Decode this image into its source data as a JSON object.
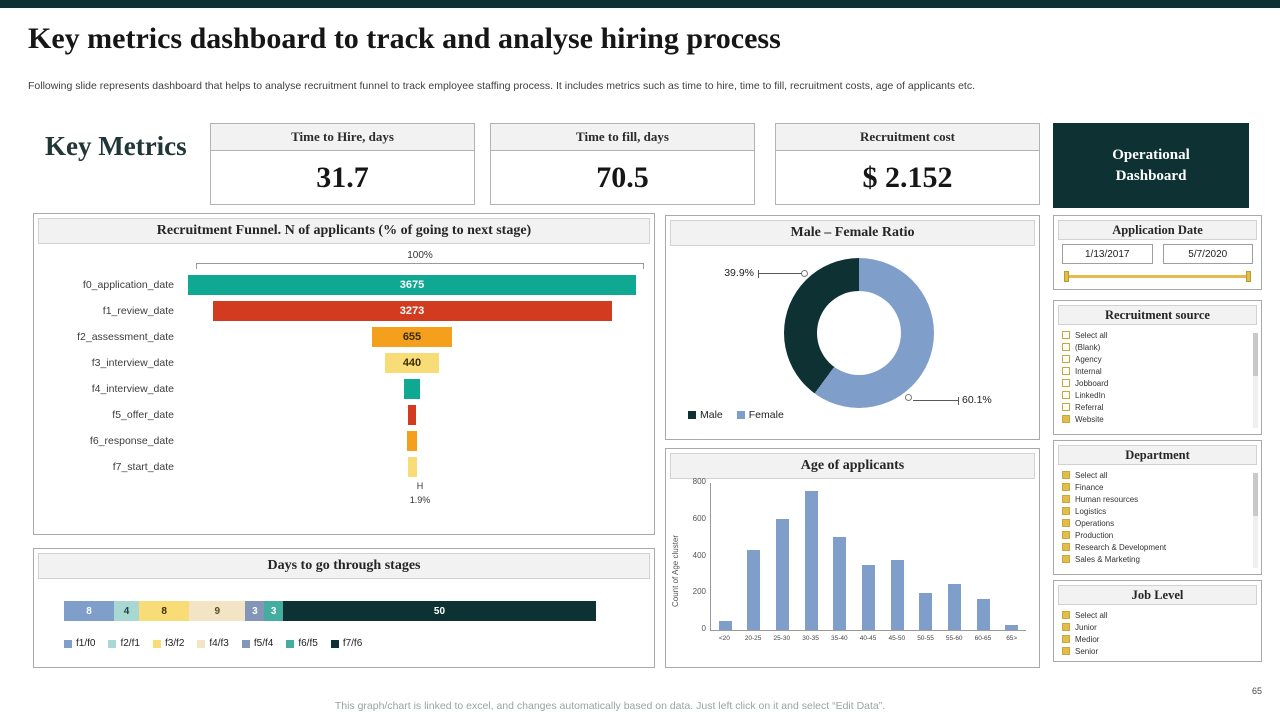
{
  "colors": {
    "dark-teal": "#0e3234",
    "gold": "#e3bc4b",
    "blue": "#7f9ec9",
    "panel-border": "#a9a9a9",
    "header-bg": "#f2f2f2"
  },
  "slide": {
    "title": "Key metrics dashboard to track and analyse hiring process",
    "subtitle": "Following slide represents dashboard that helps to analyse recruitment funnel to track employee staffing process. It includes metrics such as time to hire, time to fill, recruitment costs, age of applicants etc.",
    "footer_note": "This graph/chart is linked to excel, and changes automatically based on data. Just left click on it and select “Edit Data”.",
    "page_number": "65"
  },
  "key_metrics": {
    "heading": "Key Metrics",
    "cards": [
      {
        "label": "Time to Hire, days",
        "value": "31.7"
      },
      {
        "label": "Time to fill, days",
        "value": "70.5"
      },
      {
        "label": "Recruitment cost",
        "value": "$ 2.152"
      }
    ],
    "dashboard_button": "Operational Dashboard"
  },
  "chart_data": [
    {
      "type": "bar",
      "subtype": "centered-funnel",
      "title": "Recruitment Funnel. N of applicants (% of going to next stage)",
      "categories": [
        "f0_application_date",
        "f1_review_date",
        "f2_assessment_date",
        "f3_interview_date",
        "f4_interview_date",
        "f5_offer_date",
        "f6_response_date",
        "f7_start_date"
      ],
      "values": [
        3675,
        3273,
        655,
        440,
        130,
        65,
        80,
        70
      ],
      "bar_labels": [
        "3675",
        "3273",
        "655",
        "440",
        "",
        "",
        "",
        ""
      ],
      "colors": [
        "#0fa893",
        "#d23b20",
        "#f4a01c",
        "#f8dc78",
        "#0fa893",
        "#d23b20",
        "#f4a01c",
        "#f8dc78"
      ],
      "label_colors": [
        "#ffffff",
        "#ffffff",
        "#3a2c00",
        "#3a2c00",
        "",
        "",
        "",
        ""
      ],
      "top_label": "100%",
      "bottom_marker": "H",
      "bottom_label": "1.9%"
    },
    {
      "type": "bar",
      "subtype": "stacked-horizontal",
      "title": "Days to go through stages",
      "series": [
        "f1/f0",
        "f2/f1",
        "f3/f2",
        "f4/f3",
        "f5/f4",
        "f6/f5",
        "f7/f6"
      ],
      "values": [
        8,
        4,
        8,
        9,
        3,
        3,
        50
      ],
      "colors": [
        "#7f9ec9",
        "#a9d8d3",
        "#f8dc78",
        "#f2e4c4",
        "#8496b8",
        "#45ada0",
        "#0e3234"
      ],
      "label_colors": [
        "#ffffff",
        "#20423f",
        "#3a2c00",
        "#5a4a20",
        "#ffffff",
        "#ffffff",
        "#ffffff"
      ]
    },
    {
      "type": "pie",
      "subtype": "donut",
      "title": "Male – Female Ratio",
      "labels": [
        "Male",
        "Female"
      ],
      "values": [
        39.9,
        60.1
      ],
      "colors": [
        "#0e3234",
        "#7f9ec9"
      ],
      "callouts": [
        "39.9%",
        "60.1%"
      ]
    },
    {
      "type": "bar",
      "title": "Age of applicants",
      "categories": [
        "<20",
        "20-25",
        "25-30",
        "30-35",
        "35-40",
        "40-45",
        "45-50",
        "50-55",
        "55-60",
        "60-65",
        "65>"
      ],
      "values": [
        50,
        430,
        600,
        750,
        500,
        350,
        380,
        200,
        250,
        170,
        25
      ],
      "bar_color": "#7f9ec9",
      "ylabel": "Count of Age cluster",
      "ylim": [
        0,
        800
      ],
      "yticks": [
        0,
        200,
        400,
        600,
        800
      ]
    }
  ],
  "filters": {
    "application_date": {
      "title": "Application Date",
      "start": "1/13/2017",
      "end": "5/7/2020"
    },
    "recruitment_source": {
      "title": "Recruitment source",
      "options": [
        {
          "label": "Select all",
          "checked": false
        },
        {
          "label": "(Blank)",
          "checked": false
        },
        {
          "label": "Agency",
          "checked": false
        },
        {
          "label": "Internal",
          "checked": false
        },
        {
          "label": "Jobboard",
          "checked": false
        },
        {
          "label": "LinkedIn",
          "checked": false
        },
        {
          "label": "Referral",
          "checked": false
        },
        {
          "label": "Website",
          "checked": true
        }
      ]
    },
    "department": {
      "title": "Department",
      "options": [
        {
          "label": "Select all",
          "checked": true
        },
        {
          "label": "Finance",
          "checked": true
        },
        {
          "label": "Human resources",
          "checked": true
        },
        {
          "label": "Logistics",
          "checked": true
        },
        {
          "label": "Operations",
          "checked": true
        },
        {
          "label": "Production",
          "checked": true
        },
        {
          "label": "Research & Development",
          "checked": true
        },
        {
          "label": "Sales & Marketing",
          "checked": true
        }
      ]
    },
    "job_level": {
      "title": "Job Level",
      "options": [
        {
          "label": "Select all",
          "checked": true
        },
        {
          "label": "Junior",
          "checked": true
        },
        {
          "label": "Medior",
          "checked": true
        },
        {
          "label": "Senior",
          "checked": true
        }
      ]
    }
  }
}
